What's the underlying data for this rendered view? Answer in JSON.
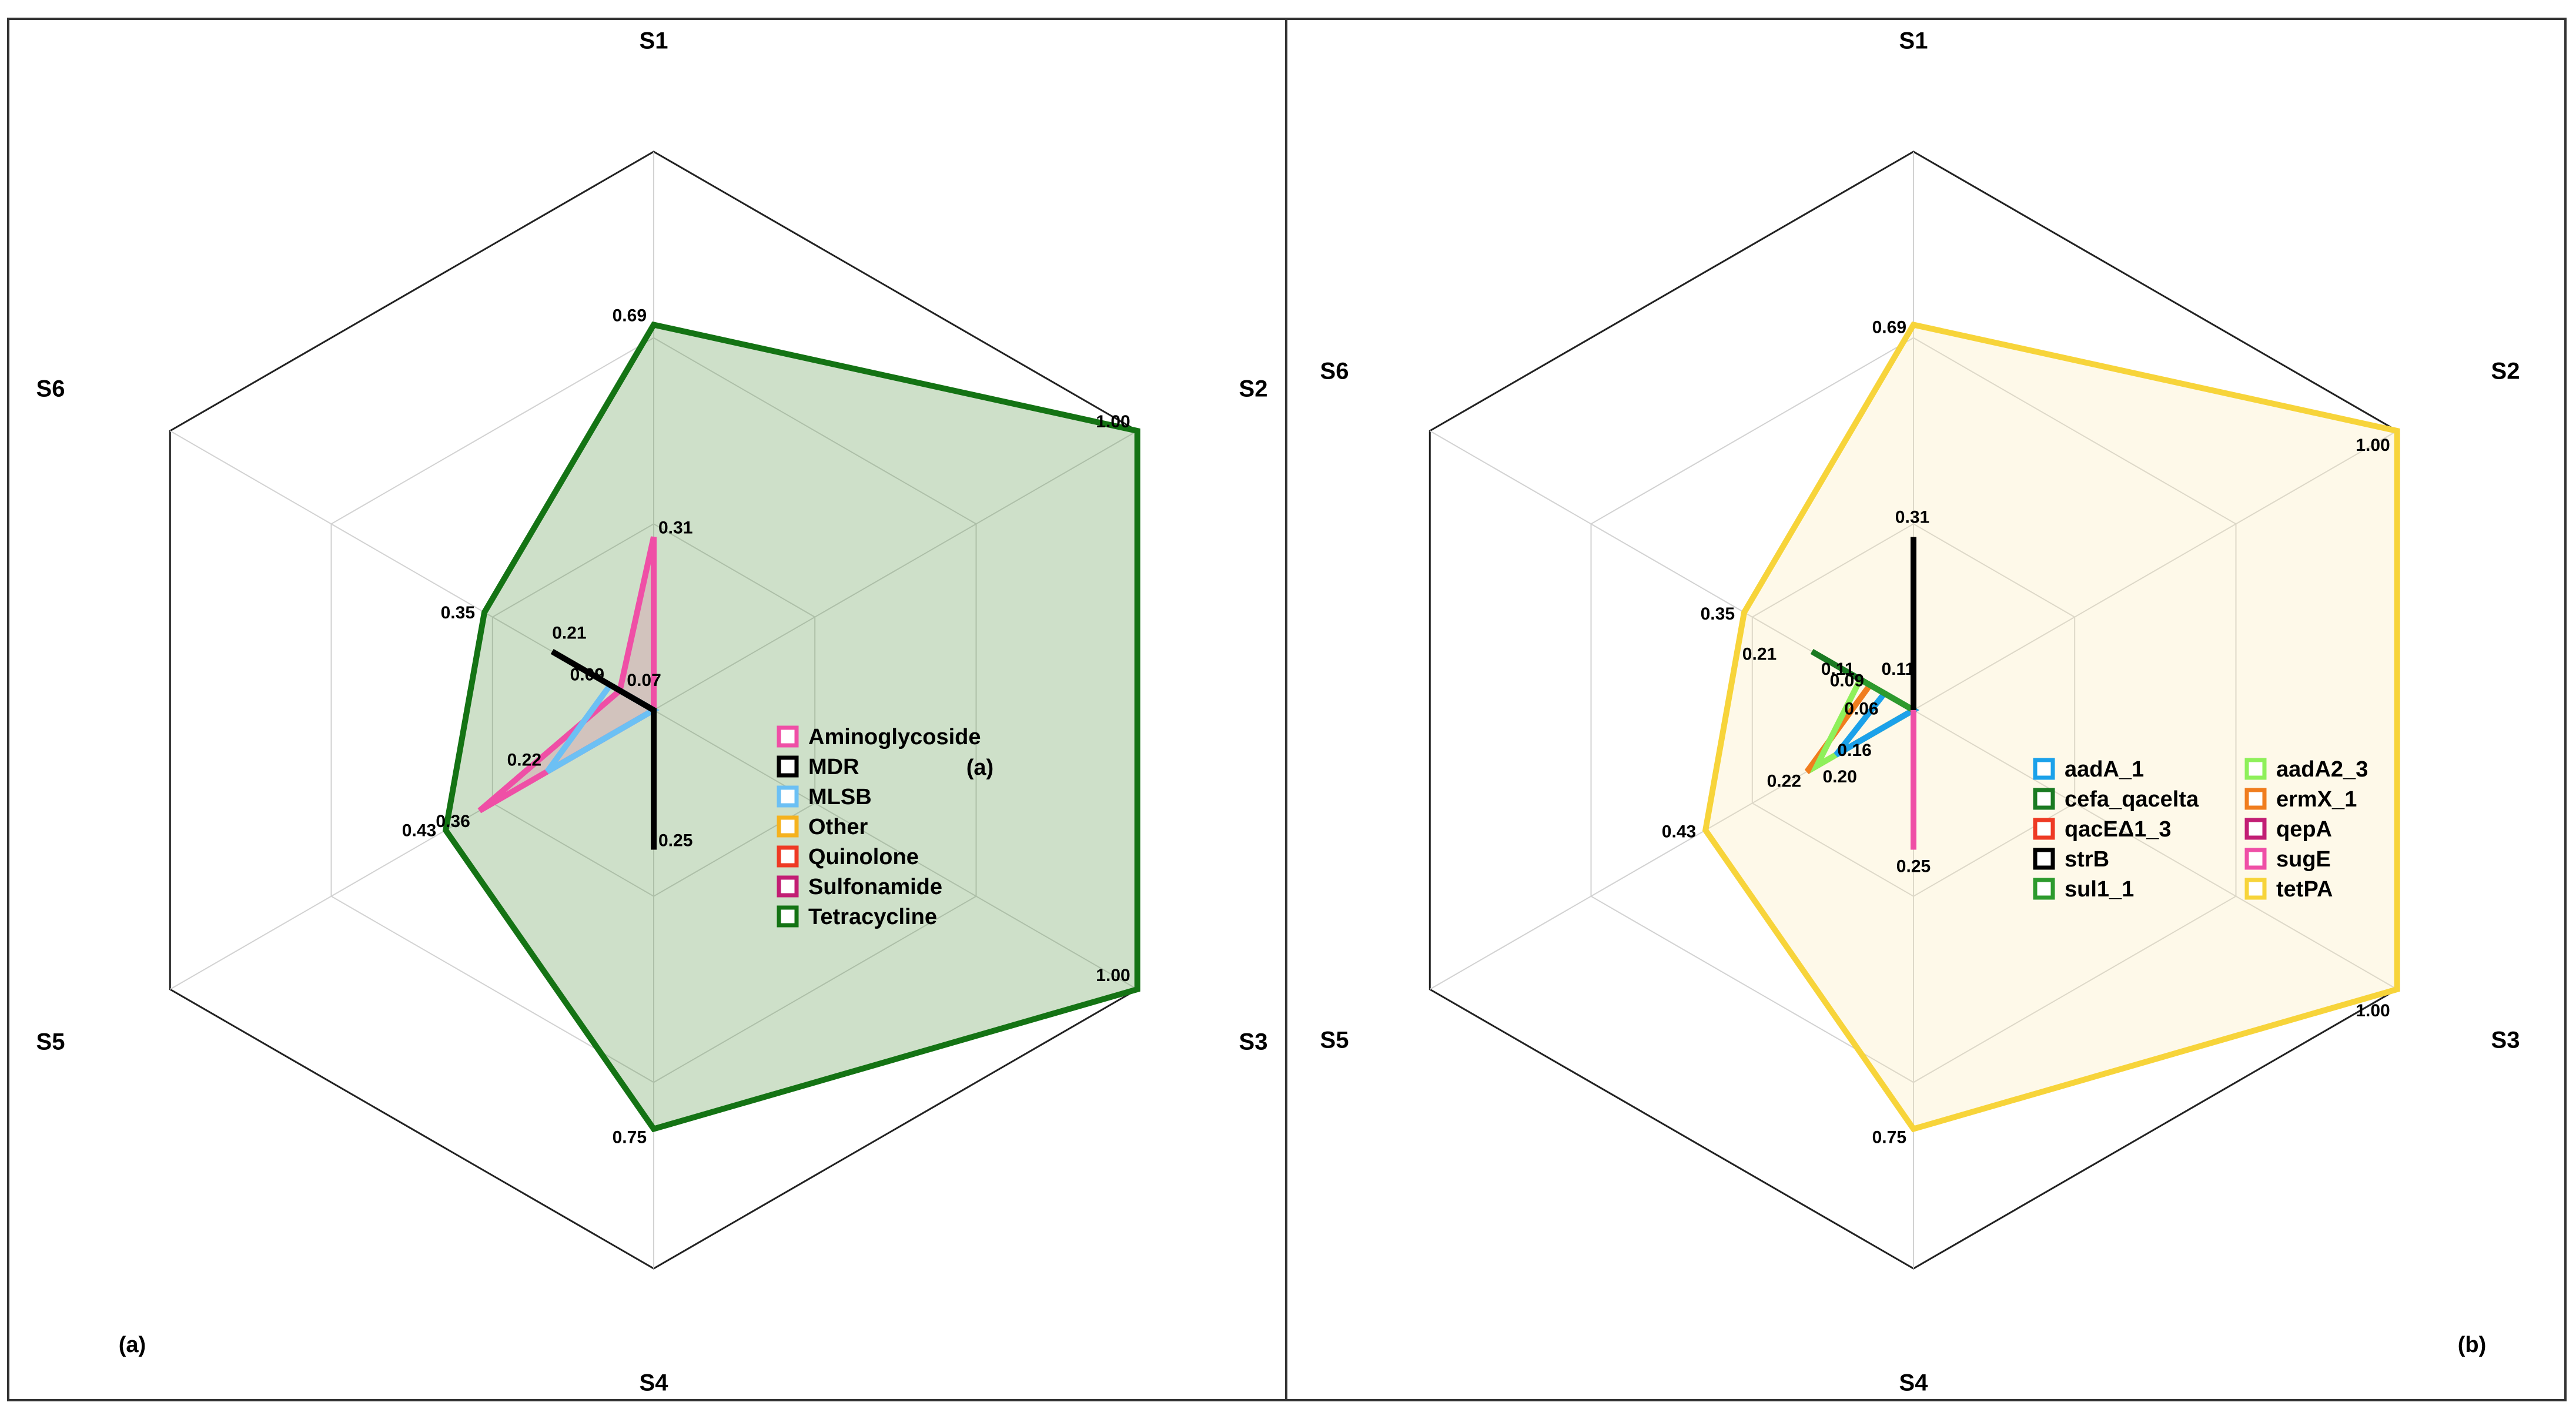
{
  "chart_data": [
    {
      "type": "radar",
      "panel_label": "(a)",
      "center_label": "(a)",
      "axes": [
        "S1",
        "S2",
        "S3",
        "S4",
        "S5",
        "S6"
      ],
      "legend_position": "center-right",
      "series": [
        {
          "name": "Tetracycline",
          "color": "#147314",
          "fill": "#4e8f3c",
          "values": [
            0.69,
            1.0,
            1.0,
            0.75,
            0.43,
            0.35
          ]
        },
        {
          "name": "Aminoglycoside",
          "color": "#ef4fa6",
          "fill": "#e07a9e",
          "values": [
            0.31,
            0,
            0,
            0,
            0.36,
            0.07
          ]
        },
        {
          "name": "MLSB",
          "color": "#6cc0f4",
          "fill": "#8fbfe6",
          "values": [
            0,
            0,
            0,
            0,
            0.22,
            0.09
          ]
        },
        {
          "name": "MDR",
          "color": "#000000",
          "fill": "#000000",
          "values": [
            0,
            0,
            0,
            0.25,
            0,
            0.21
          ]
        },
        {
          "name": "Other",
          "color": "#f5b21e",
          "fill": "#f5b21e",
          "values": [
            0,
            0,
            0,
            0,
            0,
            0
          ]
        },
        {
          "name": "Quinolone",
          "color": "#ee3a24",
          "fill": "#ee3a24",
          "values": [
            0,
            0,
            0,
            0,
            0,
            0
          ]
        },
        {
          "name": "Sulfonamide",
          "color": "#c21e74",
          "fill": "#c21e74",
          "values": [
            0,
            0,
            0,
            0,
            0,
            0
          ]
        }
      ],
      "legend_order": [
        "Aminoglycoside",
        "MDR",
        "MLSB",
        "Other",
        "Quinolone",
        "Sulfonamide",
        "Tetracycline"
      ]
    },
    {
      "type": "radar",
      "panel_label": "(b)",
      "axes": [
        "S1",
        "S2",
        "S3",
        "S4",
        "S5",
        "S6"
      ],
      "legend_position": "center-right",
      "series": [
        {
          "name": "tetPA",
          "color": "#f7d43a",
          "fill": "#faeab0",
          "values": [
            0.69,
            1.0,
            1.0,
            0.75,
            0.43,
            0.35
          ]
        },
        {
          "name": "ermX_1",
          "color": "#f07d1e",
          "fill": "#f5b27a",
          "values": [
            0,
            0,
            0,
            0,
            0.22,
            0.09
          ]
        },
        {
          "name": "aadA2_3",
          "color": "#8ef05a",
          "fill": "#8ef05a",
          "values": [
            0,
            0,
            0,
            0,
            0.2,
            0.11
          ]
        },
        {
          "name": "aadA_1",
          "color": "#1ba1ea",
          "fill": "#9fb8c4",
          "values": [
            0,
            0,
            0,
            0,
            0.16,
            0.06
          ]
        },
        {
          "name": "cefa_qacelta",
          "color": "#1a7a22",
          "fill": "#1a7a22",
          "values": [
            0,
            0,
            0,
            0,
            0,
            0.21
          ]
        },
        {
          "name": "sul1_1",
          "color": "#2d9a2d",
          "fill": "#2d9a2d",
          "values": [
            0,
            0,
            0,
            0,
            0,
            0.11
          ]
        },
        {
          "name": "strB",
          "color": "#000000",
          "fill": "#000000",
          "values": [
            0.31,
            0,
            0,
            0,
            0,
            0
          ]
        },
        {
          "name": "sugE",
          "color": "#ef4fa6",
          "fill": "#ef4fa6",
          "values": [
            0,
            0,
            0,
            0.25,
            0,
            0
          ]
        },
        {
          "name": "qacEΔ1_3",
          "color": "#ee3a24",
          "fill": "#ee3a24",
          "values": [
            0,
            0,
            0,
            0,
            0,
            0
          ]
        },
        {
          "name": "qepA",
          "color": "#c21e74",
          "fill": "#c21e74",
          "values": [
            0,
            0,
            0,
            0,
            0,
            0
          ]
        }
      ],
      "legend_order": [
        "aadA_1",
        "cefa_qacelta",
        "qacEΔ1_3",
        "strB",
        "sul1_1",
        "aadA2_3",
        "ermX_1",
        "qepA",
        "sugE",
        "tetPA"
      ]
    }
  ]
}
